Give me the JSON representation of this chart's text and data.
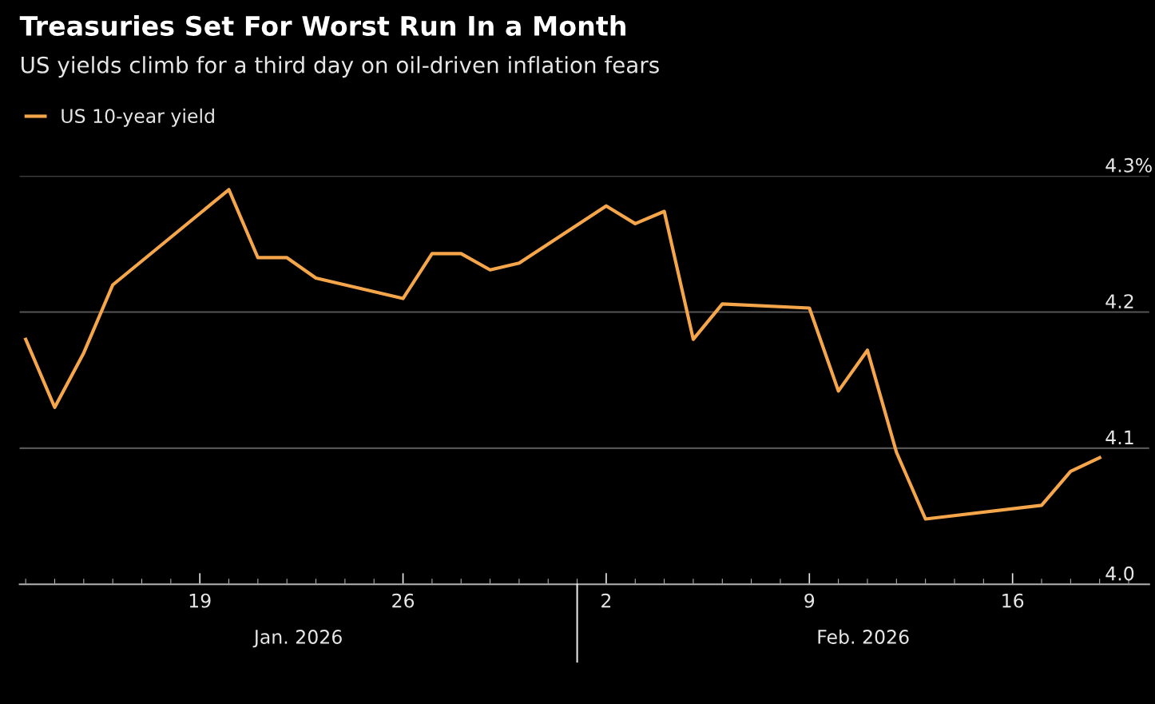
{
  "chart_data": {
    "type": "line",
    "title": "Treasuries Set For Worst Run In a Month",
    "subtitle": "US yields climb for a third day on oil-driven inflation fears",
    "x": [
      "2026-01-13",
      "2026-01-14",
      "2026-01-15",
      "2026-01-16",
      "2026-01-20",
      "2026-01-21",
      "2026-01-22",
      "2026-01-23",
      "2026-01-26",
      "2026-01-27",
      "2026-01-28",
      "2026-01-29",
      "2026-01-30",
      "2026-02-02",
      "2026-02-03",
      "2026-02-04",
      "2026-02-05",
      "2026-02-06",
      "2026-02-09",
      "2026-02-10",
      "2026-02-11",
      "2026-02-12",
      "2026-02-13",
      "2026-02-17",
      "2026-02-18",
      "2026-02-19"
    ],
    "series": [
      {
        "name": "US 10-year yield",
        "color": "#f5a54a",
        "values": [
          4.18,
          4.13,
          4.17,
          4.22,
          4.29,
          4.24,
          4.24,
          4.225,
          4.21,
          4.243,
          4.243,
          4.231,
          4.236,
          4.278,
          4.265,
          4.274,
          4.18,
          4.206,
          4.203,
          4.142,
          4.172,
          4.097,
          4.048,
          4.058,
          4.083,
          4.093
        ]
      }
    ],
    "xlim": [
      "2026-01-12T19:00",
      "2026-02-20T17:00"
    ],
    "xticks": [
      {
        "value": "2026-01-19",
        "label": "19"
      },
      {
        "value": "2026-01-26",
        "label": "26"
      },
      {
        "value": "2026-02-02",
        "label": "2"
      },
      {
        "value": "2026-02-09",
        "label": "9"
      },
      {
        "value": "2026-02-16",
        "label": "16"
      }
    ],
    "ylim": [
      4.0,
      4.3
    ],
    "yticks": [
      {
        "value": 4.0,
        "label": "4.0"
      },
      4.1,
      4.2,
      {
        "value": 4.3,
        "label": "4.3%"
      }
    ],
    "grid": "y",
    "legend": "top left",
    "marker": "none",
    "line_style": "solid",
    "annotations": [
      "Jan. 2026",
      "Feb. 2026"
    ]
  }
}
